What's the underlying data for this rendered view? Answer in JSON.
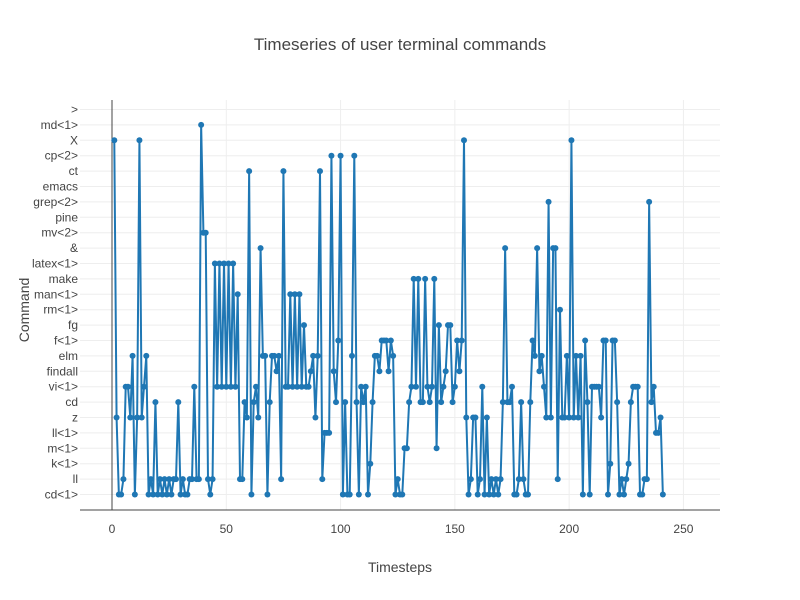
{
  "chart_data": {
    "type": "line",
    "title": "Timeseries of user terminal commands",
    "xlabel": "Timesteps",
    "ylabel": "Command",
    "xlim": [
      -14,
      266
    ],
    "x_ticks": [
      0,
      50,
      100,
      150,
      200,
      250
    ],
    "y_categories": [
      "cd<1>",
      "ll",
      "k<1>",
      "m<1>",
      "ll<1>",
      "z",
      "cd",
      "vi<1>",
      "findall",
      "elm",
      "f<1>",
      "fg",
      "rm<1>",
      "man<1>",
      "make",
      "latex<1>",
      "&",
      "mv<2>",
      "pine",
      "grep<2>",
      "emacs",
      "ct",
      "cp<2>",
      "X",
      "md<1>",
      ">"
    ],
    "grid": true,
    "legend": "none",
    "colors": {
      "line": "#1f77b4",
      "grid": "#eeeeee",
      "axis": "#444444",
      "text": "#444444"
    },
    "series": [
      {
        "x_start": 1,
        "values": [
          23,
          5,
          0,
          0,
          1,
          7,
          7,
          5,
          9,
          0,
          5,
          23,
          5,
          7,
          9,
          0,
          1,
          0,
          6,
          0,
          1,
          0,
          1,
          0,
          1,
          0,
          1,
          1,
          6,
          0,
          1,
          0,
          0,
          1,
          1,
          7,
          1,
          1,
          24,
          17,
          17,
          1,
          0,
          1,
          15,
          7,
          15,
          7,
          15,
          7,
          15,
          7,
          15,
          7,
          13,
          1,
          1,
          6,
          5,
          21,
          0,
          6,
          7,
          5,
          16,
          9,
          9,
          0,
          6,
          9,
          9,
          8,
          9,
          1,
          21,
          7,
          7,
          13,
          7,
          13,
          7,
          13,
          7,
          11,
          7,
          7,
          8,
          9,
          5,
          9,
          21,
          1,
          4,
          4,
          4,
          22,
          8,
          6,
          10,
          22,
          0,
          6,
          0,
          0,
          9,
          22,
          6,
          0,
          7,
          6,
          7,
          0,
          2,
          6,
          9,
          9,
          8,
          10,
          10,
          10,
          8,
          10,
          9,
          0,
          1,
          0,
          0,
          3,
          3,
          6,
          7,
          14,
          7,
          14,
          6,
          6,
          14,
          7,
          6,
          7,
          14,
          3,
          11,
          6,
          7,
          8,
          11,
          11,
          6,
          7,
          10,
          8,
          10,
          23,
          5,
          0,
          1,
          5,
          5,
          0,
          1,
          7,
          0,
          5,
          0,
          1,
          0,
          1,
          0,
          1,
          6,
          16,
          6,
          6,
          7,
          0,
          0,
          1,
          6,
          1,
          0,
          0,
          6,
          10,
          9,
          16,
          8,
          9,
          7,
          5,
          19,
          5,
          16,
          16,
          1,
          12,
          5,
          5,
          9,
          5,
          23,
          5,
          9,
          5,
          9,
          0,
          10,
          6,
          0,
          7,
          7,
          7,
          7,
          5,
          10,
          10,
          0,
          2,
          10,
          10,
          6,
          0,
          1,
          0,
          1,
          2,
          6,
          7,
          7,
          7,
          0,
          0,
          1,
          1,
          19,
          6,
          7,
          4,
          4,
          5,
          0
        ],
        "color": "#1f77b4"
      }
    ]
  }
}
